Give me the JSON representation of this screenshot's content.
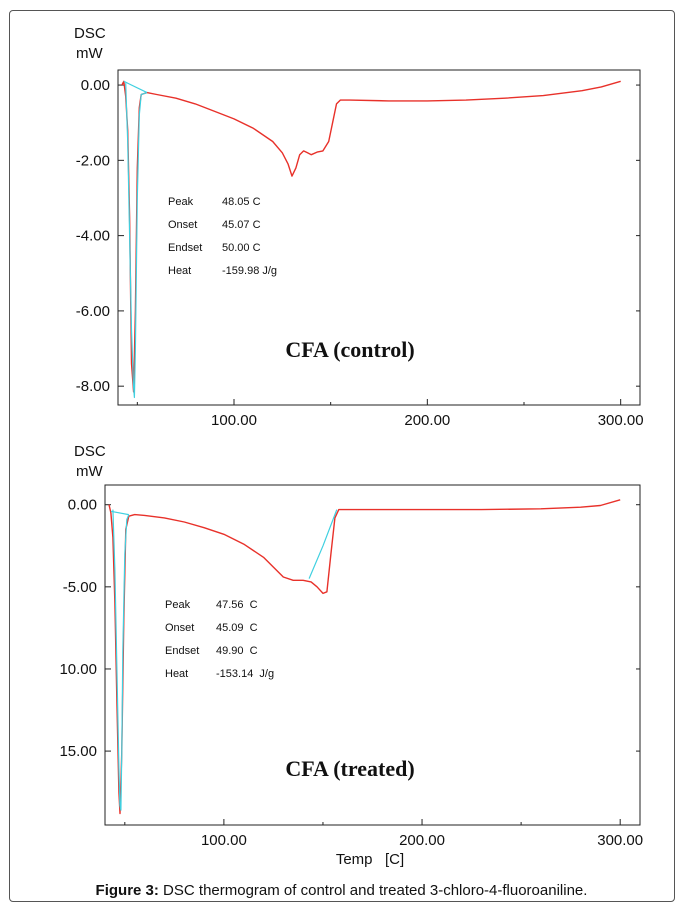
{
  "chart_data": [
    {
      "type": "line",
      "y_unit_label": "DSC",
      "ylabel": "mW",
      "xlabel": "",
      "sample_label": "CFA (control)",
      "xlim": [
        40,
        310
      ],
      "ylim": [
        -8.5,
        0.4
      ],
      "x_ticks": [
        100,
        200,
        300
      ],
      "x_tick_labels": [
        "100.00",
        "200.00",
        "300.00"
      ],
      "y_ticks": [
        0,
        -2,
        -4,
        -6,
        -8
      ],
      "y_tick_labels": [
        "0.00",
        "-2.00",
        "-4.00",
        "-6.00",
        "-8.00"
      ],
      "annotation": [
        {
          "label": "Peak",
          "value": "48.05 C"
        },
        {
          "label": "Onset",
          "value": "45.07 C"
        },
        {
          "label": "Endset",
          "value": "50.00 C"
        },
        {
          "label": "Heat",
          "value": "-159.98 J/g"
        }
      ],
      "series": [
        {
          "color": "#e8312a",
          "x": [
            42,
            43,
            44,
            45,
            46,
            47,
            48.05,
            49,
            50,
            51,
            52,
            55,
            60,
            70,
            80,
            90,
            100,
            110,
            120,
            125,
            128,
            130,
            132,
            134,
            136,
            138,
            140,
            143,
            146,
            149,
            151,
            153,
            155,
            160,
            180,
            200,
            220,
            240,
            260,
            280,
            290,
            300
          ],
          "y": [
            0.0,
            0.1,
            -0.3,
            -1.2,
            -3.5,
            -7.4,
            -8.15,
            -6.0,
            -2.2,
            -0.6,
            -0.25,
            -0.2,
            -0.25,
            -0.35,
            -0.5,
            -0.7,
            -0.9,
            -1.15,
            -1.5,
            -1.8,
            -2.1,
            -2.42,
            -2.2,
            -1.85,
            -1.75,
            -1.8,
            -1.85,
            -1.78,
            -1.75,
            -1.5,
            -1.0,
            -0.5,
            -0.4,
            -0.4,
            -0.42,
            -0.42,
            -0.4,
            -0.35,
            -0.28,
            -0.15,
            -0.05,
            0.1
          ]
        },
        {
          "color": "#3fd0e0",
          "x": [
            44,
            45,
            46,
            47,
            48,
            48.5,
            49,
            50,
            51,
            52,
            55
          ],
          "y": [
            0.05,
            -1.5,
            -4.0,
            -6.5,
            -8.0,
            -8.3,
            -7.0,
            -3.0,
            -0.8,
            -0.25,
            -0.2
          ]
        },
        {
          "color": "#3fd0e0",
          "x": [
            43,
            55
          ],
          "y": [
            0.1,
            -0.2
          ]
        }
      ]
    },
    {
      "type": "line",
      "y_unit_label": "DSC",
      "ylabel": "mW",
      "xlabel": "Temp   [C]",
      "sample_label": "CFA (treated)",
      "xlim": [
        40,
        310
      ],
      "ylim": [
        -19.5,
        1.2
      ],
      "x_ticks": [
        100,
        200,
        300
      ],
      "x_tick_labels": [
        "100.00",
        "200.00",
        "300.00"
      ],
      "y_ticks": [
        0,
        -5,
        -10,
        -15
      ],
      "y_tick_labels": [
        "0.00",
        "-5.00",
        "10.00",
        "15.00"
      ],
      "annotation": [
        {
          "label": "Peak",
          "value": "47.56  C"
        },
        {
          "label": "Onset",
          "value": "45.09  C"
        },
        {
          "label": "Endset",
          "value": "49.90  C"
        },
        {
          "label": "Heat",
          "value": "-153.14  J/g"
        }
      ],
      "series": [
        {
          "color": "#e8312a",
          "x": [
            42,
            43,
            44,
            45,
            46,
            47,
            47.56,
            48.5,
            49.5,
            50.5,
            52,
            55,
            60,
            70,
            80,
            90,
            100,
            110,
            120,
            125,
            130,
            135,
            140,
            144,
            147,
            150,
            152,
            154,
            156,
            158,
            170,
            200,
            230,
            260,
            280,
            290,
            300
          ],
          "y": [
            0.0,
            -0.5,
            -2.0,
            -6.0,
            -12.0,
            -17.5,
            -18.8,
            -15.0,
            -7.0,
            -1.5,
            -0.7,
            -0.6,
            -0.65,
            -0.8,
            -1.05,
            -1.4,
            -1.8,
            -2.4,
            -3.2,
            -3.8,
            -4.4,
            -4.6,
            -4.6,
            -4.7,
            -5.0,
            -5.4,
            -5.3,
            -3.0,
            -0.8,
            -0.3,
            -0.3,
            -0.3,
            -0.3,
            -0.25,
            -0.15,
            -0.05,
            0.3
          ]
        },
        {
          "color": "#3fd0e0",
          "x": [
            44,
            45,
            46,
            47,
            47.5,
            48,
            48.5,
            49,
            50,
            51,
            52
          ],
          "y": [
            -0.3,
            -4.0,
            -10.0,
            -16.0,
            -18.3,
            -18.6,
            -15.0,
            -9.0,
            -3.0,
            -0.9,
            -0.6
          ]
        },
        {
          "color": "#3fd0e0",
          "x": [
            43,
            52
          ],
          "y": [
            -0.4,
            -0.6
          ]
        },
        {
          "color": "#3fd0e0",
          "x": [
            143,
            150,
            157
          ],
          "y": [
            -4.5,
            -2.5,
            -0.3
          ]
        }
      ]
    }
  ],
  "caption": {
    "label": "Figure 3:",
    "text": " DSC thermogram of control and treated 3-chloro-4-fluoroaniline."
  }
}
